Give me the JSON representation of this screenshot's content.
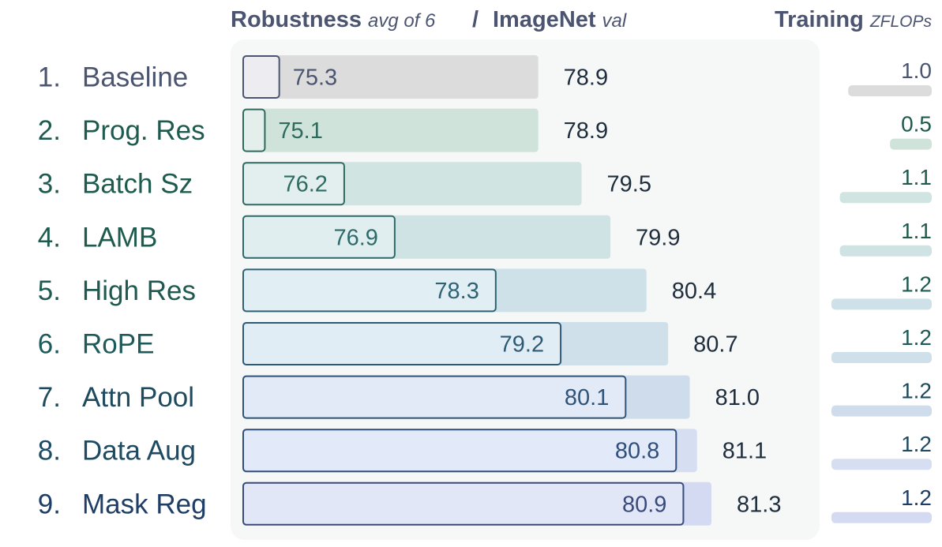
{
  "chart_data": {
    "type": "bar",
    "header": {
      "robustness_title": "Robustness",
      "robustness_sub": "avg of 6",
      "separator": "/",
      "imagenet_title": "ImageNet",
      "imagenet_sub": "val",
      "training_title": "Training",
      "training_sub": "ZFLOPs"
    },
    "categories": [
      {
        "index": "1.",
        "name": "Baseline"
      },
      {
        "index": "2.",
        "name": "Prog. Res"
      },
      {
        "index": "3.",
        "name": "Batch Sz"
      },
      {
        "index": "4.",
        "name": "LAMB"
      },
      {
        "index": "5.",
        "name": "High Res"
      },
      {
        "index": "6.",
        "name": "RoPE"
      },
      {
        "index": "7.",
        "name": "Attn Pool"
      },
      {
        "index": "8.",
        "name": "Data Aug"
      },
      {
        "index": "9.",
        "name": "Mask Reg"
      }
    ],
    "series": [
      {
        "name": "Robustness",
        "values": [
          75.3,
          75.1,
          76.2,
          76.9,
          78.3,
          79.2,
          80.1,
          80.8,
          80.9
        ],
        "labels": [
          "75.3",
          "75.1",
          "76.2",
          "76.9",
          "78.3",
          "79.2",
          "80.1",
          "80.8",
          "80.9"
        ]
      },
      {
        "name": "ImageNet",
        "values": [
          78.9,
          78.9,
          79.5,
          79.9,
          80.4,
          80.7,
          81.0,
          81.1,
          81.3
        ],
        "labels": [
          "78.9",
          "78.9",
          "79.5",
          "79.9",
          "80.4",
          "80.7",
          "81.0",
          "81.1",
          "81.3"
        ]
      },
      {
        "name": "Training",
        "values": [
          1.0,
          0.5,
          1.1,
          1.1,
          1.2,
          1.2,
          1.2,
          1.2,
          1.2
        ],
        "labels": [
          "1.0",
          "0.5",
          "1.1",
          "1.1",
          "1.2",
          "1.2",
          "1.2",
          "1.2",
          "1.2"
        ]
      }
    ],
    "colors": {
      "label": [
        "#4b5470",
        "#1e5a4e",
        "#1e5a4e",
        "#1e5a4e",
        "#1e5a50",
        "#1e5a5a",
        "#1e4a5e",
        "#1e4a62",
        "#1e3e66"
      ],
      "fill": [
        "#dcdcdc",
        "#cfe3db",
        "#d0e4e2",
        "#cfe2e4",
        "#cfe1e8",
        "#cfe0ea",
        "#cfdcec",
        "#d6def2",
        "#d3daf2"
      ],
      "inner": [
        "#ededf1",
        "#e4efeb",
        "#e2efee",
        "#e1eeef",
        "#e1eef3",
        "#e1edf5",
        "#e1eaf6",
        "#e2e9f8",
        "#e2e7f8"
      ],
      "stroke": [
        "#4b5470",
        "#2f6b5c",
        "#2f6b62",
        "#2f6a6a",
        "#2f6272",
        "#2f5a76",
        "#2f5478",
        "#2f4e7a",
        "#3a4a7a"
      ],
      "panel": "#f6f7f7"
    }
  }
}
